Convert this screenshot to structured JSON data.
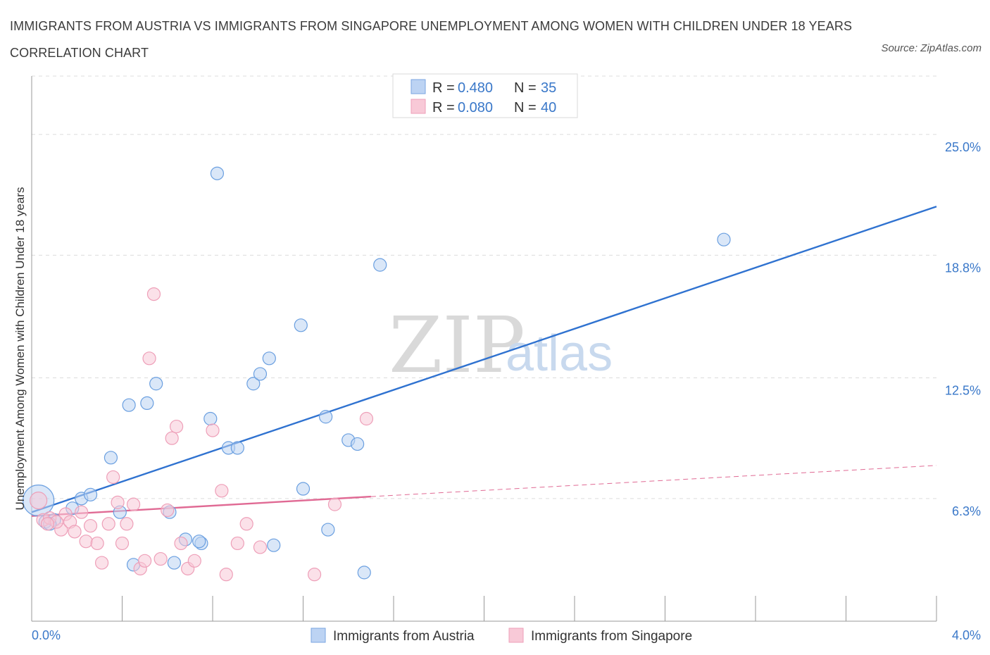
{
  "header": {
    "title": "IMMIGRANTS FROM AUSTRIA VS IMMIGRANTS FROM SINGAPORE UNEMPLOYMENT AMONG WOMEN WITH CHILDREN UNDER 18 YEARS CORRELATION CHART",
    "source": "Source: ZipAtlas.com"
  },
  "watermark": {
    "zip": "ZIP",
    "atlas": "atlas"
  },
  "legend": {
    "rows": [
      {
        "r_label": "R = ",
        "r_value": "0.480",
        "n_label": "N = ",
        "n_value": "35"
      },
      {
        "r_label": "R = ",
        "r_value": "0.080",
        "n_label": "N = ",
        "n_value": "40"
      }
    ]
  },
  "chart_data": {
    "type": "scatter",
    "title": "IMMIGRANTS FROM AUSTRIA VS IMMIGRANTS FROM SINGAPORE UNEMPLOYMENT AMONG WOMEN WITH CHILDREN UNDER 18 YEARS CORRELATION CHART",
    "xlabel": "",
    "ylabel": "Unemployment Among Women with Children Under 18 years",
    "xlim": [
      0,
      4.0
    ],
    "ylim": [
      0,
      28.0
    ],
    "x_tick_labels": [
      "0.0%",
      "4.0%"
    ],
    "y_tick_labels": [
      "6.3%",
      "12.5%",
      "18.8%",
      "25.0%"
    ],
    "y_tick_values": [
      6.3,
      12.5,
      18.8,
      25.0
    ],
    "grid": "horizontal dashed",
    "legend_position": "top-center and bottom",
    "colors": {
      "austria": "#6a9fe0",
      "austria_line": "#2f72d0",
      "singapore": "#f0a3bb",
      "singapore_line": "#e06a94"
    },
    "series": [
      {
        "name": "Immigrants from Austria",
        "trend": {
          "x": [
            0.0,
            4.0
          ],
          "y": [
            5.6,
            21.3
          ]
        },
        "points": [
          [
            0.03,
            6.2,
            22
          ],
          [
            0.06,
            5.1,
            9
          ],
          [
            0.1,
            5.2,
            9
          ],
          [
            0.18,
            5.8,
            9
          ],
          [
            0.22,
            6.3,
            9
          ],
          [
            0.26,
            6.5,
            9
          ],
          [
            0.35,
            8.4,
            9
          ],
          [
            0.39,
            5.6,
            9
          ],
          [
            0.43,
            11.1,
            9
          ],
          [
            0.51,
            11.2,
            9
          ],
          [
            0.55,
            12.2,
            9
          ],
          [
            0.61,
            5.6,
            9
          ],
          [
            0.68,
            4.2,
            9
          ],
          [
            0.75,
            4.0,
            9
          ],
          [
            0.79,
            10.4,
            9
          ],
          [
            0.82,
            23.0,
            9
          ],
          [
            0.87,
            8.9,
            9
          ],
          [
            0.91,
            8.9,
            9
          ],
          [
            0.98,
            12.2,
            9
          ],
          [
            1.01,
            12.7,
            9
          ],
          [
            1.05,
            13.5,
            9
          ],
          [
            1.07,
            3.9,
            9
          ],
          [
            1.19,
            15.2,
            9
          ],
          [
            1.2,
            6.8,
            9
          ],
          [
            1.3,
            10.5,
            9
          ],
          [
            1.31,
            4.7,
            9
          ],
          [
            1.4,
            9.3,
            9
          ],
          [
            1.44,
            9.1,
            9
          ],
          [
            1.47,
            2.5,
            9
          ],
          [
            1.54,
            18.3,
            9
          ],
          [
            0.45,
            2.9,
            9
          ],
          [
            0.63,
            3.0,
            9
          ],
          [
            0.74,
            4.1,
            9
          ],
          [
            3.06,
            19.6,
            9
          ],
          [
            0.08,
            5.0,
            9
          ]
        ]
      },
      {
        "name": "Immigrants from Singapore",
        "trend": {
          "x": [
            0.0,
            1.5
          ],
          "y": [
            5.4,
            6.4
          ]
        },
        "trend_extension": {
          "x": [
            1.5,
            4.0
          ],
          "y": [
            6.4,
            8.0
          ]
        },
        "points": [
          [
            0.03,
            6.2,
            12
          ],
          [
            0.05,
            5.2,
            9
          ],
          [
            0.08,
            5.3,
            9
          ],
          [
            0.13,
            4.7,
            9
          ],
          [
            0.15,
            5.5,
            9
          ],
          [
            0.17,
            5.1,
            9
          ],
          [
            0.19,
            4.6,
            9
          ],
          [
            0.22,
            5.6,
            9
          ],
          [
            0.24,
            4.1,
            9
          ],
          [
            0.26,
            4.9,
            9
          ],
          [
            0.29,
            4.0,
            9
          ],
          [
            0.31,
            3.0,
            9
          ],
          [
            0.34,
            5.0,
            9
          ],
          [
            0.36,
            7.4,
            9
          ],
          [
            0.38,
            6.1,
            9
          ],
          [
            0.4,
            4.0,
            9
          ],
          [
            0.42,
            5.0,
            9
          ],
          [
            0.45,
            6.0,
            9
          ],
          [
            0.48,
            2.7,
            9
          ],
          [
            0.5,
            3.1,
            9
          ],
          [
            0.52,
            13.5,
            9
          ],
          [
            0.54,
            16.8,
            9
          ],
          [
            0.57,
            3.2,
            9
          ],
          [
            0.6,
            5.7,
            9
          ],
          [
            0.62,
            9.4,
            9
          ],
          [
            0.64,
            10.0,
            9
          ],
          [
            0.66,
            4.0,
            9
          ],
          [
            0.69,
            2.7,
            9
          ],
          [
            0.72,
            3.1,
            9
          ],
          [
            0.8,
            9.8,
            9
          ],
          [
            0.84,
            6.7,
            9
          ],
          [
            0.86,
            2.4,
            9
          ],
          [
            0.91,
            4.0,
            9
          ],
          [
            0.95,
            5.0,
            9
          ],
          [
            1.01,
            3.8,
            9
          ],
          [
            1.25,
            2.4,
            9
          ],
          [
            1.34,
            6.0,
            9
          ],
          [
            1.48,
            10.4,
            9
          ],
          [
            0.11,
            5.1,
            9
          ],
          [
            0.07,
            5.0,
            9
          ]
        ]
      }
    ]
  }
}
